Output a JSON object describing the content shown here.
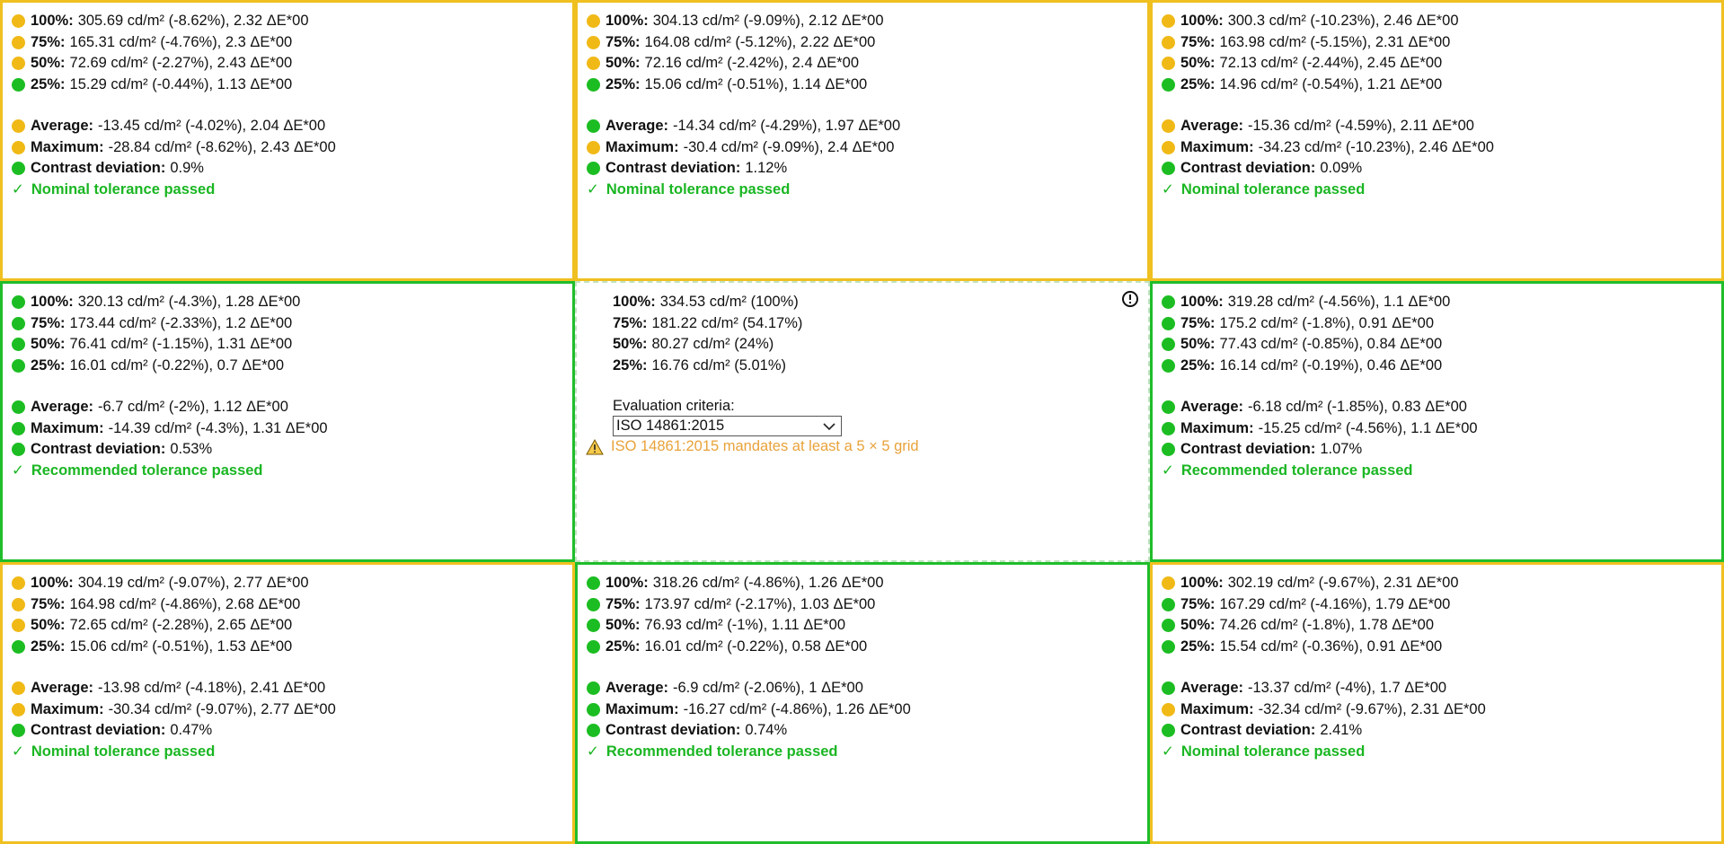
{
  "cells": [
    {
      "border": "yellow",
      "rows": [
        {
          "status": "yellow",
          "key": "100%:",
          "value": "305.69 cd/m² (-8.62%), 2.32 ΔE*00"
        },
        {
          "status": "yellow",
          "key": "75%:",
          "value": "165.31 cd/m² (-4.76%), 2.3 ΔE*00"
        },
        {
          "status": "yellow",
          "key": "50%:",
          "value": "72.69 cd/m² (-2.27%), 2.43 ΔE*00"
        },
        {
          "status": "green",
          "key": "25%:",
          "value": "15.29 cd/m² (-0.44%), 1.13 ΔE*00"
        }
      ],
      "summary": [
        {
          "status": "yellow",
          "key": "Average:",
          "value": "-13.45 cd/m² (-4.02%), 2.04 ΔE*00"
        },
        {
          "status": "yellow",
          "key": "Maximum:",
          "value": "-28.84 cd/m² (-8.62%), 2.43 ΔE*00"
        },
        {
          "status": "green",
          "key": "Contrast deviation:",
          "value": "0.9%"
        }
      ],
      "result": "Nominal tolerance passed"
    },
    {
      "border": "yellow",
      "rows": [
        {
          "status": "yellow",
          "key": "100%:",
          "value": "304.13 cd/m² (-9.09%), 2.12 ΔE*00"
        },
        {
          "status": "yellow",
          "key": "75%:",
          "value": "164.08 cd/m² (-5.12%), 2.22 ΔE*00"
        },
        {
          "status": "yellow",
          "key": "50%:",
          "value": "72.16 cd/m² (-2.42%), 2.4 ΔE*00"
        },
        {
          "status": "green",
          "key": "25%:",
          "value": "15.06 cd/m² (-0.51%), 1.14 ΔE*00"
        }
      ],
      "summary": [
        {
          "status": "green",
          "key": "Average:",
          "value": "-14.34 cd/m² (-4.29%), 1.97 ΔE*00"
        },
        {
          "status": "yellow",
          "key": "Maximum:",
          "value": "-30.4 cd/m² (-9.09%), 2.4 ΔE*00"
        },
        {
          "status": "green",
          "key": "Contrast deviation:",
          "value": "1.12%"
        }
      ],
      "result": "Nominal tolerance passed"
    },
    {
      "border": "yellow",
      "rows": [
        {
          "status": "yellow",
          "key": "100%:",
          "value": "300.3 cd/m² (-10.23%), 2.46 ΔE*00"
        },
        {
          "status": "yellow",
          "key": "75%:",
          "value": "163.98 cd/m² (-5.15%), 2.31 ΔE*00"
        },
        {
          "status": "yellow",
          "key": "50%:",
          "value": "72.13 cd/m² (-2.44%), 2.45 ΔE*00"
        },
        {
          "status": "green",
          "key": "25%:",
          "value": "14.96 cd/m² (-0.54%), 1.21 ΔE*00"
        }
      ],
      "summary": [
        {
          "status": "yellow",
          "key": "Average:",
          "value": "-15.36 cd/m² (-4.59%), 2.11 ΔE*00"
        },
        {
          "status": "yellow",
          "key": "Maximum:",
          "value": "-34.23 cd/m² (-10.23%), 2.46 ΔE*00"
        },
        {
          "status": "green",
          "key": "Contrast deviation:",
          "value": "0.09%"
        }
      ],
      "result": "Nominal tolerance passed"
    },
    {
      "border": "green",
      "rows": [
        {
          "status": "green",
          "key": "100%:",
          "value": "320.13 cd/m² (-4.3%), 1.28 ΔE*00"
        },
        {
          "status": "green",
          "key": "75%:",
          "value": "173.44 cd/m² (-2.33%), 1.2 ΔE*00"
        },
        {
          "status": "green",
          "key": "50%:",
          "value": "76.41 cd/m² (-1.15%), 1.31 ΔE*00"
        },
        {
          "status": "green",
          "key": "25%:",
          "value": "16.01 cd/m² (-0.22%), 0.7 ΔE*00"
        }
      ],
      "summary": [
        {
          "status": "green",
          "key": "Average:",
          "value": "-6.7 cd/m² (-2%), 1.12 ΔE*00"
        },
        {
          "status": "green",
          "key": "Maximum:",
          "value": "-14.39 cd/m² (-4.3%), 1.31 ΔE*00"
        },
        {
          "status": "green",
          "key": "Contrast deviation:",
          "value": "0.53%"
        }
      ],
      "result": "Recommended tolerance passed"
    },
    {
      "border": "reference"
    },
    {
      "border": "green",
      "rows": [
        {
          "status": "green",
          "key": "100%:",
          "value": "319.28 cd/m² (-4.56%), 1.1 ΔE*00"
        },
        {
          "status": "green",
          "key": "75%:",
          "value": "175.2 cd/m² (-1.8%), 0.91 ΔE*00"
        },
        {
          "status": "green",
          "key": "50%:",
          "value": "77.43 cd/m² (-0.85%), 0.84 ΔE*00"
        },
        {
          "status": "green",
          "key": "25%:",
          "value": "16.14 cd/m² (-0.19%), 0.46 ΔE*00"
        }
      ],
      "summary": [
        {
          "status": "green",
          "key": "Average:",
          "value": "-6.18 cd/m² (-1.85%), 0.83 ΔE*00"
        },
        {
          "status": "green",
          "key": "Maximum:",
          "value": "-15.25 cd/m² (-4.56%), 1.1 ΔE*00"
        },
        {
          "status": "green",
          "key": "Contrast deviation:",
          "value": "1.07%"
        }
      ],
      "result": "Recommended tolerance passed"
    },
    {
      "border": "yellow",
      "rows": [
        {
          "status": "yellow",
          "key": "100%:",
          "value": "304.19 cd/m² (-9.07%), 2.77 ΔE*00"
        },
        {
          "status": "yellow",
          "key": "75%:",
          "value": "164.98 cd/m² (-4.86%), 2.68 ΔE*00"
        },
        {
          "status": "yellow",
          "key": "50%:",
          "value": "72.65 cd/m² (-2.28%), 2.65 ΔE*00"
        },
        {
          "status": "green",
          "key": "25%:",
          "value": "15.06 cd/m² (-0.51%), 1.53 ΔE*00"
        }
      ],
      "summary": [
        {
          "status": "yellow",
          "key": "Average:",
          "value": "-13.98 cd/m² (-4.18%), 2.41 ΔE*00"
        },
        {
          "status": "yellow",
          "key": "Maximum:",
          "value": "-30.34 cd/m² (-9.07%), 2.77 ΔE*00"
        },
        {
          "status": "green",
          "key": "Contrast deviation:",
          "value": "0.47%"
        }
      ],
      "result": "Nominal tolerance passed"
    },
    {
      "border": "green",
      "rows": [
        {
          "status": "green",
          "key": "100%:",
          "value": "318.26 cd/m² (-4.86%), 1.26 ΔE*00"
        },
        {
          "status": "green",
          "key": "75%:",
          "value": "173.97 cd/m² (-2.17%), 1.03 ΔE*00"
        },
        {
          "status": "green",
          "key": "50%:",
          "value": "76.93 cd/m² (-1%), 1.11 ΔE*00"
        },
        {
          "status": "green",
          "key": "25%:",
          "value": "16.01 cd/m² (-0.22%), 0.58 ΔE*00"
        }
      ],
      "summary": [
        {
          "status": "green",
          "key": "Average:",
          "value": "-6.9 cd/m² (-2.06%), 1 ΔE*00"
        },
        {
          "status": "green",
          "key": "Maximum:",
          "value": "-16.27 cd/m² (-4.86%), 1.26 ΔE*00"
        },
        {
          "status": "green",
          "key": "Contrast deviation:",
          "value": "0.74%"
        }
      ],
      "result": "Recommended tolerance passed"
    },
    {
      "border": "yellow",
      "rows": [
        {
          "status": "yellow",
          "key": "100%:",
          "value": "302.19 cd/m² (-9.67%), 2.31 ΔE*00"
        },
        {
          "status": "green",
          "key": "75%:",
          "value": "167.29 cd/m² (-4.16%), 1.79 ΔE*00"
        },
        {
          "status": "green",
          "key": "50%:",
          "value": "74.26 cd/m² (-1.8%), 1.78 ΔE*00"
        },
        {
          "status": "green",
          "key": "25%:",
          "value": "15.54 cd/m² (-0.36%), 0.91 ΔE*00"
        }
      ],
      "summary": [
        {
          "status": "green",
          "key": "Average:",
          "value": "-13.37 cd/m² (-4%), 1.7 ΔE*00"
        },
        {
          "status": "yellow",
          "key": "Maximum:",
          "value": "-32.34 cd/m² (-9.67%), 2.31 ΔE*00"
        },
        {
          "status": "green",
          "key": "Contrast deviation:",
          "value": "2.41%"
        }
      ],
      "result": "Nominal tolerance passed"
    }
  ],
  "reference": {
    "rows": [
      {
        "key": "100%:",
        "value": "334.53 cd/m² (100%)"
      },
      {
        "key": "75%:",
        "value": "181.22 cd/m² (54.17%)"
      },
      {
        "key": "50%:",
        "value": "80.27 cd/m² (24%)"
      },
      {
        "key": "25%:",
        "value": "16.76 cd/m² (5.01%)"
      }
    ],
    "criteria_label": "Evaluation criteria:",
    "criteria_value": "ISO 14861:2015",
    "warning": "ISO 14861:2015 mandates at least a 5 × 5 grid",
    "info_icon": "info-icon",
    "warning_icon": "warning-triangle-icon"
  },
  "check_mark": "✓",
  "colors": {
    "yellow": "#f0c020",
    "green": "#1fbd2b",
    "warning": "#e8a23a"
  }
}
